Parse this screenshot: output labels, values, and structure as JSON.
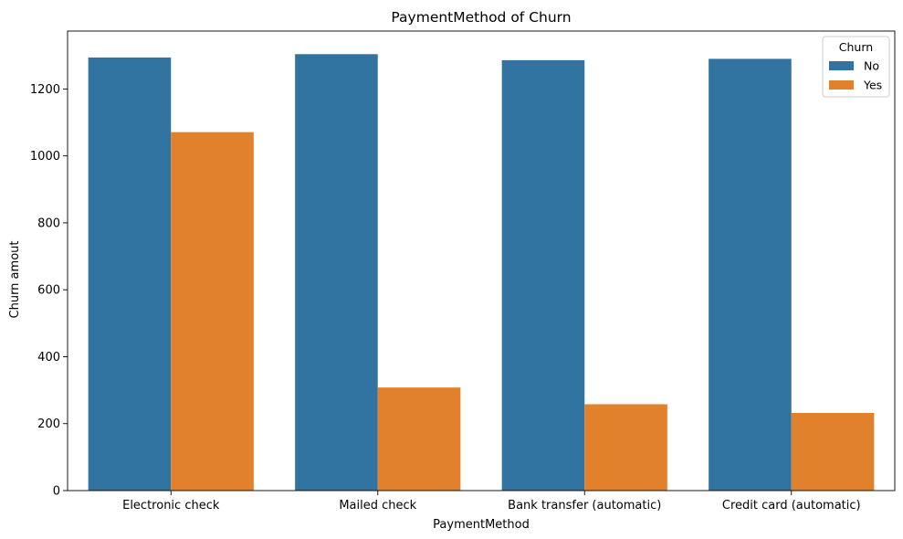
{
  "chart_data": {
    "type": "bar",
    "title": "PaymentMethod of Churn",
    "xlabel": "PaymentMethod",
    "ylabel": "Churn amout",
    "categories": [
      "Electronic check",
      "Mailed check",
      "Bank transfer (automatic)",
      "Credit card (automatic)"
    ],
    "series": [
      {
        "name": "No",
        "values": [
          1294,
          1304,
          1286,
          1290
        ],
        "color": "#3274a1"
      },
      {
        "name": "Yes",
        "values": [
          1071,
          308,
          258,
          232
        ],
        "color": "#e1812c"
      }
    ],
    "ylim": [
      0,
      1373
    ],
    "yticks": [
      0,
      200,
      400,
      600,
      800,
      1000,
      1200
    ],
    "legend": {
      "title": "Churn",
      "position": "top-right"
    },
    "grid": false
  }
}
